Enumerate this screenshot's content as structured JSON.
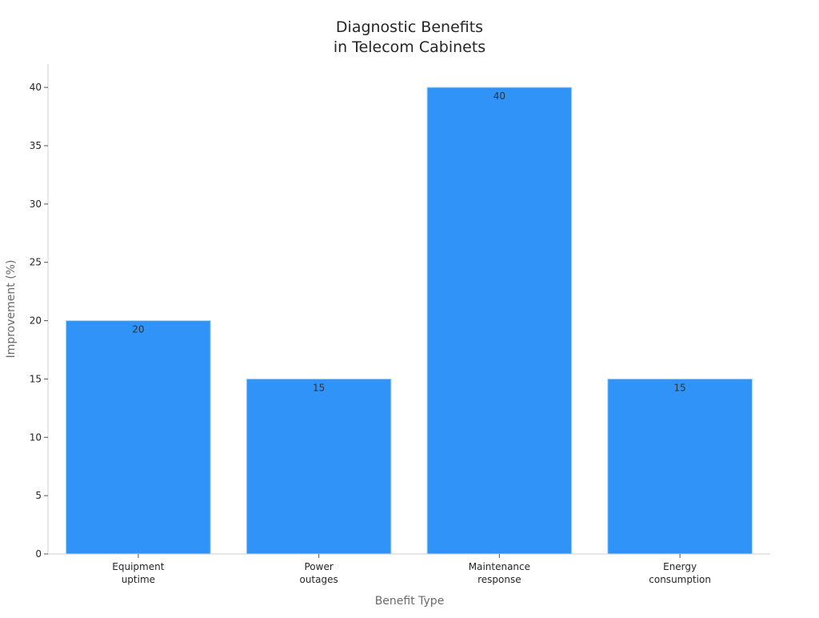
{
  "chart_data": {
    "type": "bar",
    "title": [
      "Diagnostic Benefits",
      "in Telecom Cabinets"
    ],
    "categories": [
      [
        "Equipment",
        "uptime"
      ],
      [
        "Power",
        "outages"
      ],
      [
        "Maintenance",
        "response"
      ],
      [
        "Energy",
        "consumption"
      ]
    ],
    "values": [
      20,
      15,
      40,
      15
    ],
    "data_labels": [
      "20",
      "15",
      "40",
      "15"
    ],
    "xlabel": "Benefit Type",
    "ylabel": "Improvement (%)",
    "ylim": [
      0,
      42
    ],
    "yticks": [
      0,
      5,
      10,
      15,
      20,
      25,
      30,
      35,
      40
    ],
    "grid": false,
    "legend": "none",
    "colors": {
      "bar": "#2f93f8",
      "bar_edge": "#a9d2fb"
    }
  }
}
